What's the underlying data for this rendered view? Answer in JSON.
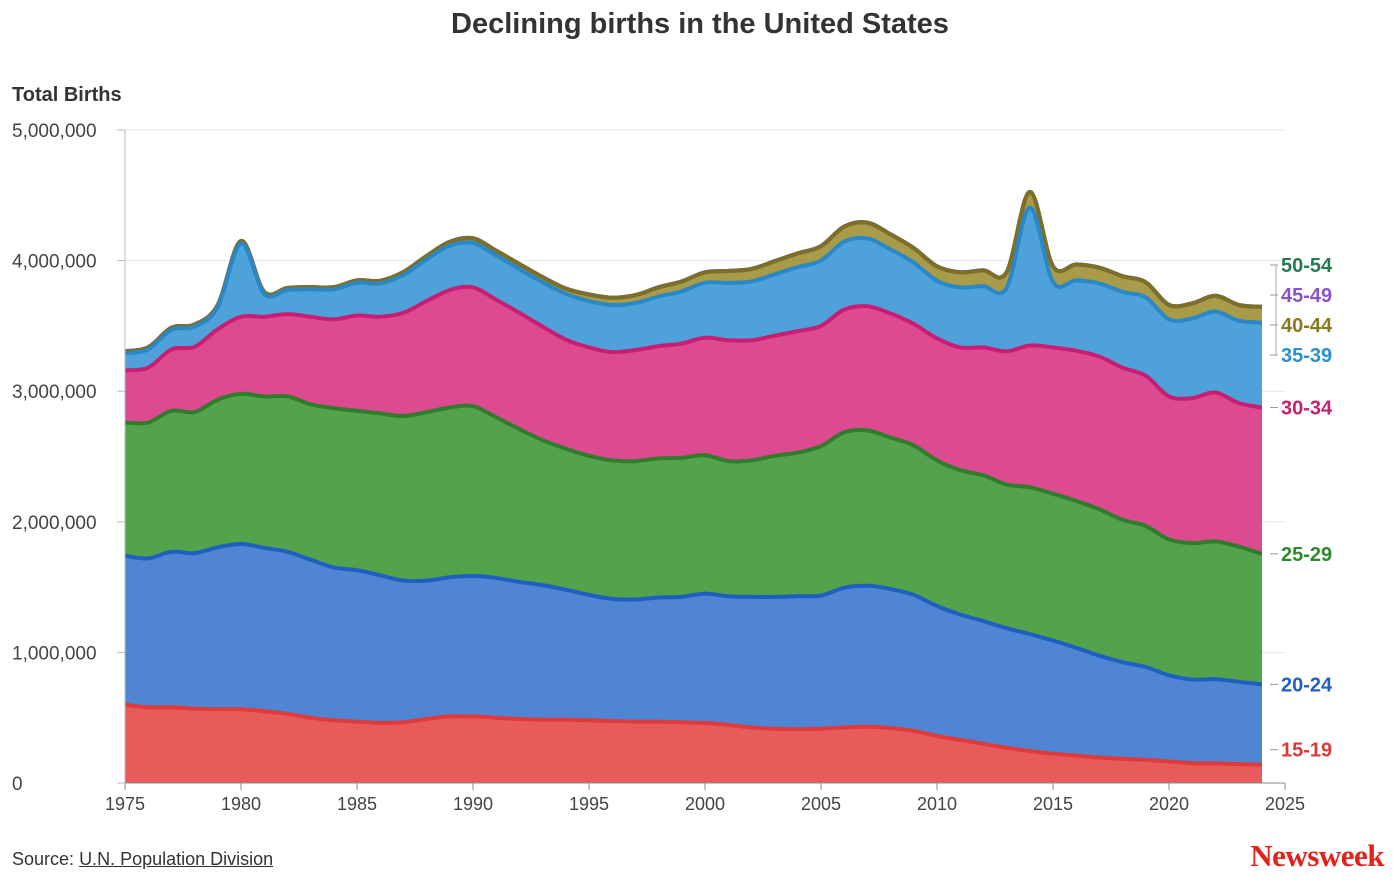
{
  "chart_data": {
    "type": "area",
    "stacked": true,
    "title": "Declining births in the United States",
    "ylabel": "Total Births",
    "source_label": "Source:",
    "source_link": "U.N. Population Division",
    "brand": "Newsweek",
    "xlim": [
      1975,
      2025
    ],
    "ylim": [
      0,
      5000000
    ],
    "x_ticks": [
      1975,
      1980,
      1985,
      1990,
      1995,
      2000,
      2005,
      2010,
      2015,
      2020,
      2025
    ],
    "y_ticks": [
      0,
      1000000,
      2000000,
      3000000,
      4000000,
      5000000
    ],
    "y_tick_labels": [
      "0",
      "1,000,000",
      "2,000,000",
      "3,000,000",
      "4,000,000",
      "5,000,000"
    ],
    "grid": true,
    "legend": "right",
    "x": [
      1975,
      1976,
      1977,
      1978,
      1979,
      1980,
      1981,
      1982,
      1983,
      1984,
      1985,
      1986,
      1987,
      1988,
      1989,
      1990,
      1991,
      1992,
      1993,
      1994,
      1995,
      1996,
      1997,
      1998,
      1999,
      2000,
      2001,
      2002,
      2003,
      2004,
      2005,
      2006,
      2007,
      2008,
      2009,
      2010,
      2011,
      2012,
      2013,
      2014,
      2015,
      2016,
      2017,
      2018,
      2019,
      2020,
      2021,
      2022,
      2023,
      2024
    ],
    "series": [
      {
        "name": "15-19",
        "color": "#e85b5b",
        "line": "#e03a3a",
        "values": [
          600000,
          580000,
          580000,
          570000,
          565000,
          565000,
          550000,
          530000,
          500000,
          480000,
          470000,
          460000,
          465000,
          490000,
          510000,
          510000,
          500000,
          490000,
          485000,
          485000,
          480000,
          475000,
          470000,
          470000,
          465000,
          460000,
          445000,
          425000,
          415000,
          412000,
          415000,
          425000,
          430000,
          420000,
          400000,
          360000,
          330000,
          300000,
          270000,
          245000,
          225000,
          210000,
          195000,
          185000,
          178000,
          165000,
          152000,
          150000,
          145000,
          140000
        ]
      },
      {
        "name": "20-24",
        "color": "#5085d3",
        "line": "#1f5fc2",
        "values": [
          1140000,
          1140000,
          1190000,
          1190000,
          1240000,
          1265000,
          1250000,
          1240000,
          1210000,
          1170000,
          1160000,
          1130000,
          1085000,
          1060000,
          1065000,
          1075000,
          1070000,
          1050000,
          1030000,
          995000,
          960000,
          935000,
          935000,
          950000,
          960000,
          990000,
          985000,
          1000000,
          1010000,
          1018000,
          1020000,
          1070000,
          1080000,
          1065000,
          1040000,
          995000,
          960000,
          940000,
          915000,
          895000,
          865000,
          825000,
          780000,
          740000,
          710000,
          660000,
          640000,
          645000,
          630000,
          615000
        ]
      },
      {
        "name": "25-29",
        "color": "#52a34b",
        "line": "#2f7d2c",
        "values": [
          1020000,
          1040000,
          1080000,
          1080000,
          1130000,
          1150000,
          1160000,
          1190000,
          1190000,
          1220000,
          1220000,
          1240000,
          1260000,
          1290000,
          1300000,
          1300000,
          1230000,
          1170000,
          1110000,
          1080000,
          1065000,
          1060000,
          1060000,
          1065000,
          1065000,
          1060000,
          1035000,
          1045000,
          1080000,
          1100000,
          1145000,
          1190000,
          1190000,
          1160000,
          1145000,
          1115000,
          1105000,
          1115000,
          1100000,
          1125000,
          1125000,
          1125000,
          1120000,
          1090000,
          1080000,
          1040000,
          1045000,
          1055000,
          1035000,
          1000000
        ]
      },
      {
        "name": "30-34",
        "color": "#dc4a90",
        "line": "#c81d72",
        "values": [
          400000,
          420000,
          470000,
          500000,
          540000,
          590000,
          610000,
          630000,
          670000,
          680000,
          730000,
          740000,
          790000,
          850000,
          900000,
          910000,
          900000,
          890000,
          870000,
          835000,
          830000,
          830000,
          850000,
          860000,
          875000,
          900000,
          925000,
          920000,
          920000,
          930000,
          920000,
          940000,
          950000,
          950000,
          930000,
          935000,
          940000,
          980000,
          1020000,
          1085000,
          1120000,
          1150000,
          1170000,
          1165000,
          1150000,
          1095000,
          1110000,
          1140000,
          1100000,
          1120000
        ]
      },
      {
        "name": "35-39",
        "color": "#4fa2d9",
        "line": "#2988c8",
        "values": [
          130000,
          140000,
          150000,
          155000,
          170000,
          560000,
          175000,
          185000,
          210000,
          230000,
          250000,
          255000,
          290000,
          320000,
          340000,
          340000,
          340000,
          335000,
          340000,
          350000,
          355000,
          360000,
          360000,
          380000,
          400000,
          420000,
          440000,
          450000,
          470000,
          490000,
          500000,
          520000,
          520000,
          490000,
          470000,
          440000,
          460000,
          470000,
          485000,
          1055000,
          500000,
          540000,
          560000,
          580000,
          600000,
          590000,
          610000,
          620000,
          630000,
          650000
        ]
      },
      {
        "name": "40-44",
        "color": "#a89b4a",
        "line": "#7d7026",
        "values": [
          15000,
          15000,
          15000,
          15000,
          15000,
          20000,
          15000,
          15000,
          16000,
          16000,
          18000,
          20000,
          22000,
          25000,
          28000,
          35000,
          35000,
          38000,
          38000,
          40000,
          50000,
          55000,
          60000,
          70000,
          75000,
          80000,
          90000,
          95000,
          100000,
          105000,
          110000,
          115000,
          120000,
          115000,
          110000,
          110000,
          115000,
          120000,
          120000,
          120000,
          120000,
          120000,
          120000,
          120000,
          115000,
          110000,
          115000,
          120000,
          120000,
          120000
        ]
      },
      {
        "name": "45-49",
        "color": "#9f7fd0",
        "line": "#7b52c1",
        "values": [
          1000,
          1000,
          1000,
          1000,
          1000,
          1000,
          1000,
          1000,
          1000,
          1000,
          1000,
          1000,
          1000,
          1000,
          1000,
          1000,
          1000,
          1000,
          1000,
          1000,
          1000,
          1000,
          1000,
          1000,
          1000,
          1000,
          1000,
          1000,
          1000,
          1000,
          1000,
          1000,
          1000,
          1000,
          1000,
          1000,
          1000,
          1000,
          1000,
          1000,
          1000,
          1000,
          1000,
          1000,
          1000,
          1000,
          1000,
          1000,
          1000,
          1000
        ]
      },
      {
        "name": "50-54",
        "color": "#2a7a55",
        "line": "#2a7a55",
        "values": [
          200,
          200,
          200,
          200,
          200,
          200,
          200,
          200,
          200,
          200,
          200,
          200,
          200,
          200,
          200,
          200,
          200,
          200,
          200,
          200,
          200,
          200,
          200,
          200,
          200,
          200,
          200,
          200,
          200,
          200,
          200,
          200,
          200,
          200,
          200,
          200,
          200,
          200,
          200,
          200,
          200,
          200,
          200,
          200,
          200,
          200,
          200,
          200,
          200,
          200
        ]
      }
    ],
    "legend_colors": {
      "15-19": "#d63a3a",
      "20-24": "#2162c0",
      "25-29": "#2c8a2c",
      "30-34": "#c8206f",
      "35-39": "#2a8fcd",
      "40-44": "#8a7a1e",
      "45-49": "#8b52c9",
      "50-54": "#267a4e"
    }
  }
}
